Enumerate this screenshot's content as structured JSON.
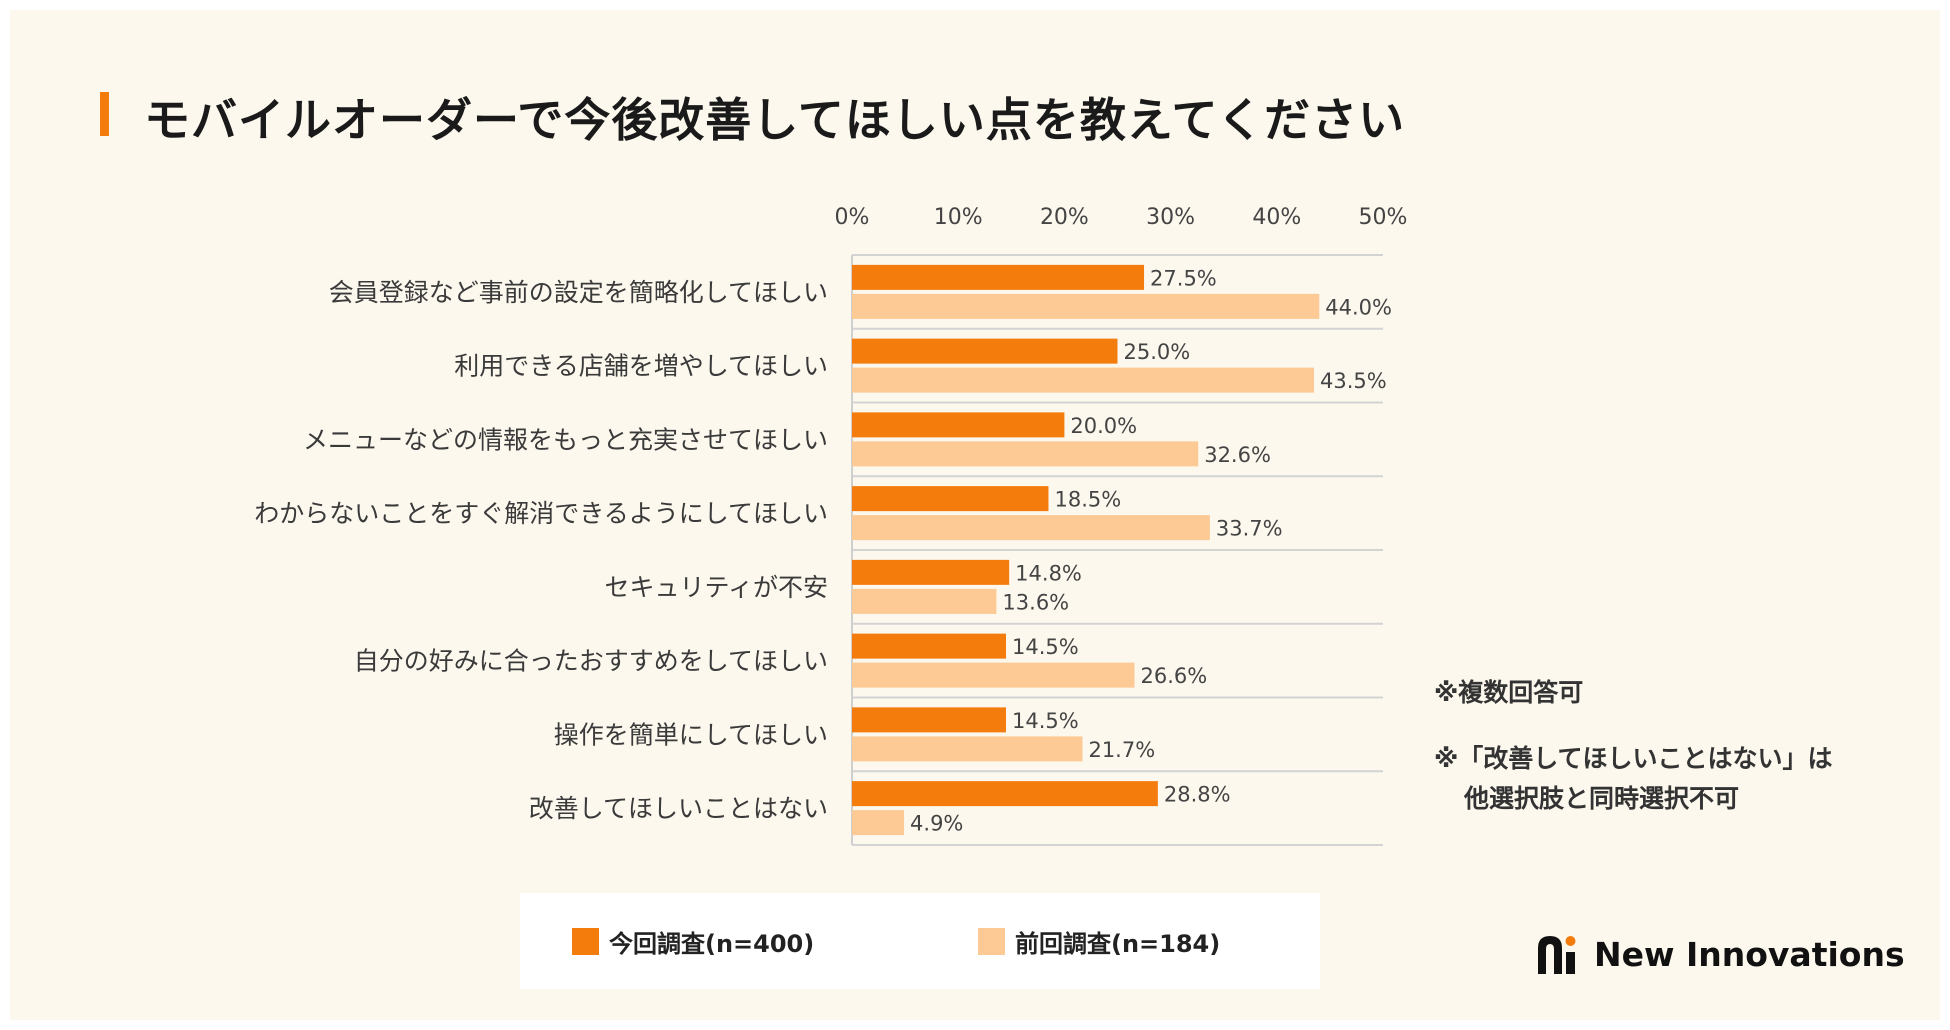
{
  "title": "モバイルオーダーで今後改善してほしい点を教えてください",
  "notes": {
    "multiple": "※複数回答可",
    "exclusive_line1": "※「改善してほしいことはない」は",
    "exclusive_line2": "他選択肢と同時選択不可"
  },
  "logo": {
    "text": "New Innovations",
    "icon": "new-innovations-logo-mark"
  },
  "colors": {
    "current": "#f47c0d",
    "previous": "#fdc994",
    "accent": "#f47c0d",
    "background": "#fcf8ee"
  },
  "chart_data": {
    "type": "bar",
    "orientation": "horizontal",
    "x_ticks": [
      "0%",
      "10%",
      "20%",
      "30%",
      "40%",
      "50%"
    ],
    "xlim": [
      0,
      50
    ],
    "categories": [
      "会員登録など事前の設定を簡略化してほしい",
      "利用できる店舗を増やしてほしい",
      "メニューなどの情報をもっと充実させてほしい",
      "わからないことをすぐ解消できるようにしてほしい",
      "セキュリティが不安",
      "自分の好みに合ったおすすめをしてほしい",
      "操作を簡単にしてほしい",
      "改善してほしいことはない"
    ],
    "series": [
      {
        "name": "今回調査(n=400)",
        "values": [
          27.5,
          25.0,
          20.0,
          18.5,
          14.8,
          14.5,
          14.5,
          28.8
        ],
        "labels": [
          "27.5%",
          "25.0%",
          "20.0%",
          "18.5%",
          "14.8%",
          "14.5%",
          "14.5%",
          "28.8%"
        ]
      },
      {
        "name": "前回調査(n=184)",
        "values": [
          44.0,
          43.5,
          32.6,
          33.7,
          13.6,
          26.6,
          21.7,
          4.9
        ],
        "labels": [
          "44.0%",
          "43.5%",
          "32.6%",
          "33.7%",
          "13.6%",
          "26.6%",
          "21.7%",
          "4.9%"
        ]
      }
    ],
    "legend_position": "bottom",
    "grid": "row separators"
  }
}
